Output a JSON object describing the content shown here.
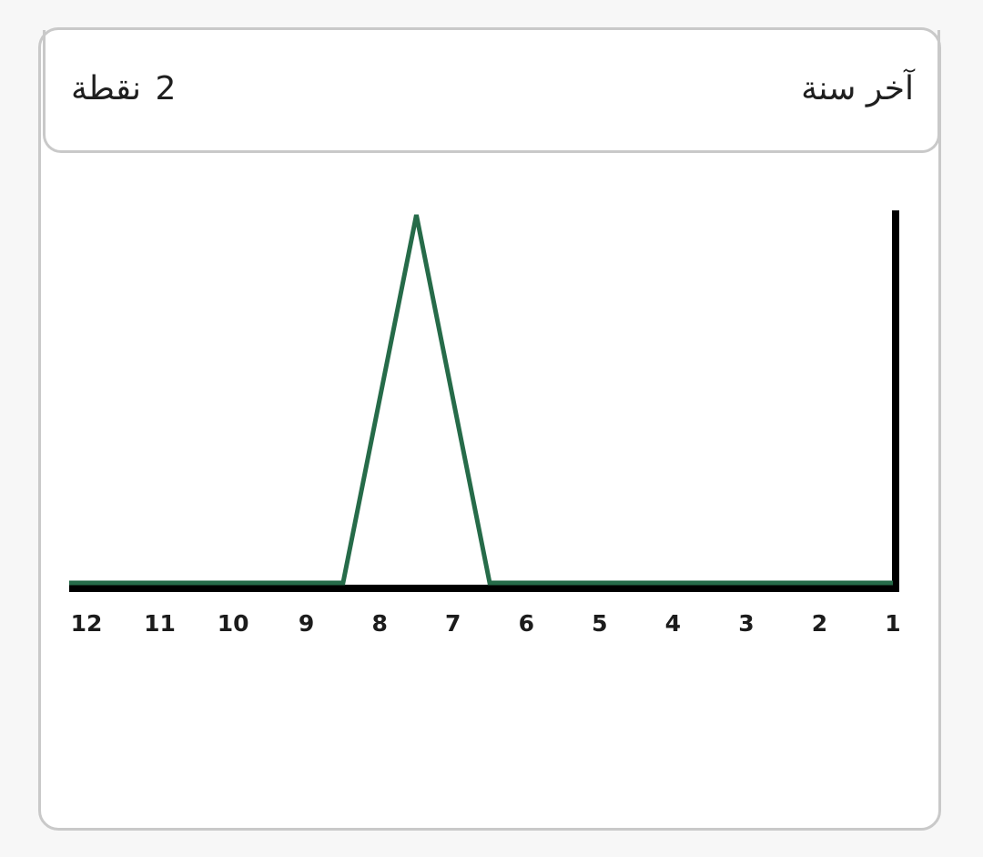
{
  "header": {
    "title": "آخر سنة",
    "points_value": "2",
    "points_label": "نقطة"
  },
  "colors": {
    "line": "#266b49",
    "axis": "#000000",
    "border": "#c9c9c9"
  },
  "chart_data": {
    "type": "line",
    "title": "",
    "xlabel": "",
    "ylabel": "",
    "x_direction": "right-to-left",
    "categories": [
      "1",
      "2",
      "3",
      "4",
      "5",
      "6",
      "7",
      "8",
      "9",
      "10",
      "11",
      "12"
    ],
    "x": [
      1,
      6.5,
      7.5,
      8.5,
      12
    ],
    "values": [
      0,
      0,
      1,
      0,
      0
    ],
    "ylim": [
      0,
      1
    ],
    "grid": false,
    "legend": "none"
  }
}
